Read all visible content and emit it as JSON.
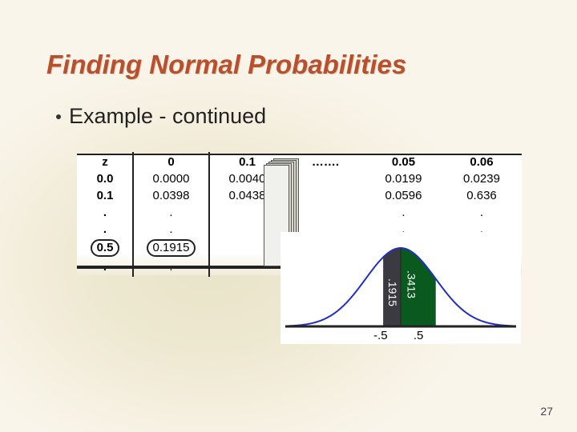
{
  "slide": {
    "title": "Finding Normal Probabilities",
    "bullet": "Example - continued",
    "page_number": "27"
  },
  "colors": {
    "title": "#b85030",
    "body_bg": "#f5f0e0",
    "table_bg": "#ffffff",
    "line": "#222222",
    "fill_left": "#3a3a40",
    "fill_right": "#0a5a20",
    "curve": "#2030c0"
  },
  "ztable": {
    "header": [
      "z",
      "0",
      "0.1",
      "…….",
      "0.05",
      "0.06"
    ],
    "rows": [
      [
        "0.0",
        "0.0000",
        "0.0040",
        "",
        "0.0199",
        "0.0239"
      ],
      [
        "0.1",
        "0.0398",
        "0.0438",
        "",
        "0.0596",
        "0.636"
      ],
      [
        ".",
        ".",
        "",
        "",
        ".",
        "."
      ],
      [
        ".",
        ".",
        "",
        "",
        ".",
        "."
      ],
      [
        "0.5",
        "0.1915",
        "",
        "",
        "",
        "…."
      ],
      [
        ".",
        ".",
        "",
        "",
        ".",
        "."
      ]
    ],
    "circled_cells": [
      [
        4,
        0
      ],
      [
        4,
        1
      ]
    ]
  },
  "curve": {
    "type": "normal-pdf-area",
    "xlim": [
      -3.2,
      3.2
    ],
    "shaded_left": {
      "from": -0.5,
      "to": 0,
      "area_label": ".1915",
      "fill": "#3a3a40"
    },
    "shaded_right": {
      "from": 0,
      "to": 1.0,
      "area_label": ".3413",
      "fill": "#0a5a20"
    },
    "axis_ticks": [
      -0.5,
      0.5
    ],
    "tick_labels": [
      "-.5",
      ".5"
    ],
    "curve_color": "#2030c0",
    "curve_width": 2
  }
}
